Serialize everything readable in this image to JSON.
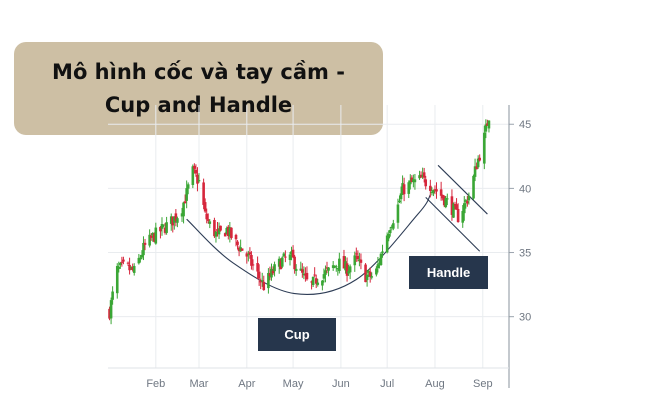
{
  "title": "Mô hình cốc và tay cầm - Cup and Handle",
  "chart_data": {
    "type": "candlestick",
    "x_start": "2019-01-02",
    "xlim": [
      "2019-01-01",
      "2019-09-18"
    ],
    "ylim": [
      26,
      46.5
    ],
    "x_ticks": [
      {
        "label": "Feb",
        "date": "2019-02-01"
      },
      {
        "label": "Mar",
        "date": "2019-03-01"
      },
      {
        "label": "Apr",
        "date": "2019-04-01"
      },
      {
        "label": "May",
        "date": "2019-05-01"
      },
      {
        "label": "Jun",
        "date": "2019-06-01"
      },
      {
        "label": "Jul",
        "date": "2019-07-01"
      },
      {
        "label": "Aug",
        "date": "2019-08-01"
      },
      {
        "label": "Sep",
        "date": "2019-09-01"
      }
    ],
    "y_ticks": [
      30,
      35,
      40,
      45
    ],
    "grid": true,
    "y_axis_position": "right",
    "up_color": "#3aa635",
    "down_color": "#d6263c",
    "close_path": [
      [
        0,
        30.4
      ],
      [
        5,
        33.6
      ],
      [
        10,
        33.9
      ],
      [
        16,
        33.5
      ],
      [
        22,
        35.3
      ],
      [
        28,
        36.2
      ],
      [
        34,
        36.8
      ],
      [
        40,
        37.4
      ],
      [
        46,
        38.2
      ],
      [
        50,
        39.6
      ],
      [
        54,
        41.3
      ],
      [
        58,
        40.5
      ],
      [
        62,
        37.9
      ],
      [
        66,
        36.9
      ],
      [
        70,
        36.3
      ],
      [
        76,
        36.8
      ],
      [
        82,
        35.7
      ],
      [
        88,
        35.0
      ],
      [
        94,
        33.7
      ],
      [
        100,
        32.4
      ],
      [
        106,
        33.5
      ],
      [
        112,
        34.4
      ],
      [
        118,
        34.6
      ],
      [
        124,
        33.4
      ],
      [
        130,
        32.3
      ],
      [
        136,
        33.2
      ],
      [
        142,
        33.5
      ],
      [
        148,
        34.2
      ],
      [
        154,
        33.7
      ],
      [
        160,
        34.5
      ],
      [
        166,
        33.2
      ],
      [
        172,
        33.1
      ],
      [
        178,
        35.7
      ],
      [
        182,
        37.2
      ],
      [
        186,
        38.2
      ],
      [
        190,
        39.9
      ],
      [
        196,
        40.4
      ],
      [
        202,
        40.7
      ],
      [
        208,
        40.3
      ],
      [
        214,
        39.6
      ],
      [
        220,
        38.8
      ],
      [
        226,
        37.8
      ],
      [
        230,
        38.7
      ],
      [
        234,
        39.7
      ],
      [
        238,
        41.9
      ],
      [
        242,
        43.4
      ],
      [
        246,
        45.7
      ]
    ],
    "annotations": [
      {
        "label": "Cup",
        "type": "arc",
        "points": [
          [
            50,
            37.6
          ],
          [
            80,
            34.2
          ],
          [
            120,
            31.8
          ],
          [
            160,
            32.9
          ],
          [
            200,
            38.0
          ],
          [
            208,
            39.5
          ]
        ]
      },
      {
        "label": "Handle",
        "type": "channel",
        "upper": [
          [
            213,
            41.8
          ],
          [
            245,
            38.0
          ]
        ],
        "lower": [
          [
            205,
            39.3
          ],
          [
            240,
            35.1
          ]
        ]
      }
    ]
  }
}
